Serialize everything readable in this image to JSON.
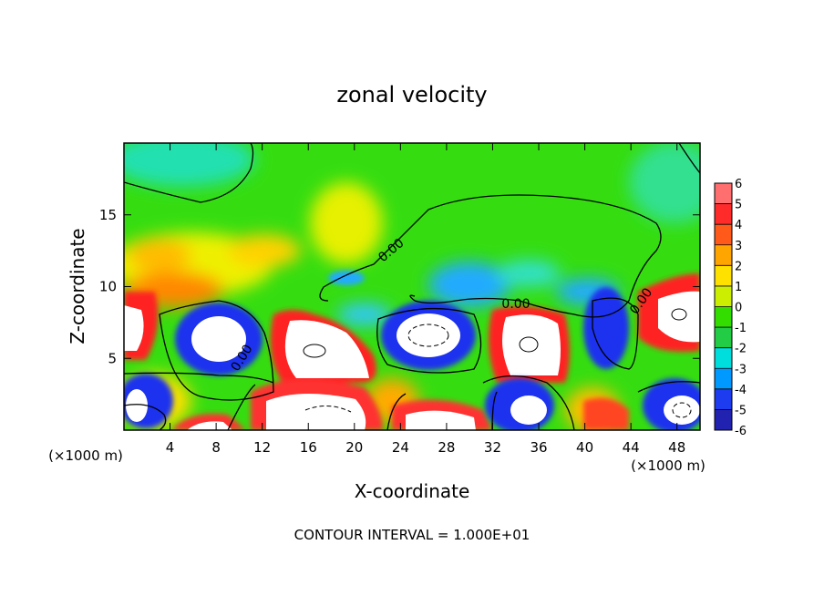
{
  "chart_data": {
    "type": "heatmap",
    "title": "zonal velocity",
    "xlabel": "X-coordinate",
    "ylabel": "Z-coordinate",
    "x_unit_left": "(×1000 m)",
    "x_unit_right": "(×1000 m)",
    "footer": "CONTOUR INTERVAL = 1.000E+01",
    "xlim": [
      0,
      50
    ],
    "ylim": [
      0,
      20
    ],
    "x_ticks": [
      4,
      8,
      12,
      16,
      20,
      24,
      28,
      32,
      36,
      40,
      44,
      48
    ],
    "y_ticks": [
      5,
      10,
      15
    ],
    "colorbar": {
      "levels": [
        6,
        5,
        4,
        3,
        2,
        1,
        0,
        -1,
        -2,
        -3,
        -4,
        -5,
        -6
      ],
      "colors": [
        "#ff6f6f",
        "#ff2a2a",
        "#ff5a1a",
        "#ffa500",
        "#ffe100",
        "#ccee00",
        "#33dd00",
        "#22cc44",
        "#00dddd",
        "#0099ff",
        "#1d3cf0",
        "#2222b0",
        "#7a00c8"
      ]
    },
    "contour_labels": [
      "0.00",
      "0.00",
      "0.00",
      "0.00"
    ]
  }
}
